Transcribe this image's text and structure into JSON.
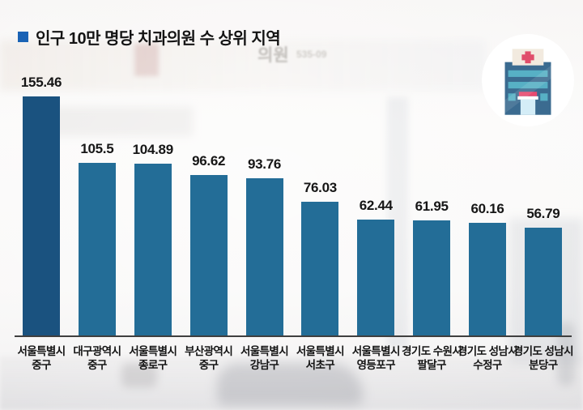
{
  "header": {
    "title": "인구 10만 명당 치과의원 수 상위 지역",
    "bullet_color": "#1a63b5"
  },
  "background": {
    "signs": {
      "clinic": "의원",
      "phone": "535-09"
    }
  },
  "icon": {
    "name": "hospital-building",
    "circle_color": "#ffffff",
    "building_color": "#3b6b90",
    "window_color": "#57b0c5",
    "cross_color": "#e04e6b",
    "accent_color": "#e8496f"
  },
  "colors": {
    "bar_default": "#236d97",
    "bar_highlight": "#1a527f",
    "axis": "#3f3f3f",
    "text": "#141414"
  },
  "chart_data": {
    "type": "bar",
    "title": "인구 10만 명당 치과의원 수 상위 지역",
    "xlabel": "",
    "ylabel": "인구 10만 명당 치과의원 수",
    "ylim": [
      0,
      160
    ],
    "grid": false,
    "legend": "none",
    "value_labels": true,
    "categories": [
      "서울특별시 중구",
      "대구광역시 중구",
      "서울특별시 종로구",
      "부산광역시 중구",
      "서울특별시 강남구",
      "서울특별시 서초구",
      "서울특별시 영등포구",
      "경기도 수원시 팔달구",
      "경기도 성남시 수정구",
      "경기도 성남시 분당구"
    ],
    "values": [
      155.46,
      105.5,
      104.89,
      96.62,
      93.76,
      76.03,
      62.44,
      61.95,
      60.16,
      56.79
    ],
    "items": [
      {
        "region_line1": "서울특별시",
        "region_line2": "중구",
        "value": 155.46,
        "value_label": "155.46",
        "highlight": true
      },
      {
        "region_line1": "대구광역시",
        "region_line2": "중구",
        "value": 105.5,
        "value_label": "105.5",
        "highlight": false
      },
      {
        "region_line1": "서울특별시",
        "region_line2": "종로구",
        "value": 104.89,
        "value_label": "104.89",
        "highlight": false
      },
      {
        "region_line1": "부산광역시",
        "region_line2": "중구",
        "value": 96.62,
        "value_label": "96.62",
        "highlight": false
      },
      {
        "region_line1": "서울특별시",
        "region_line2": "강남구",
        "value": 93.76,
        "value_label": "93.76",
        "highlight": false
      },
      {
        "region_line1": "서울특별시",
        "region_line2": "서초구",
        "value": 76.03,
        "value_label": "76.03",
        "highlight": false
      },
      {
        "region_line1": "서울특별시",
        "region_line2": "영등포구",
        "value": 62.44,
        "value_label": "62.44",
        "highlight": false
      },
      {
        "region_line1": "경기도 수원시",
        "region_line2": "팔달구",
        "value": 61.95,
        "value_label": "61.95",
        "highlight": false
      },
      {
        "region_line1": "경기도 성남시",
        "region_line2": "수정구",
        "value": 60.16,
        "value_label": "60.16",
        "highlight": false
      },
      {
        "region_line1": "경기도 성남시",
        "region_line2": "분당구",
        "value": 56.79,
        "value_label": "56.79",
        "highlight": false
      }
    ]
  }
}
